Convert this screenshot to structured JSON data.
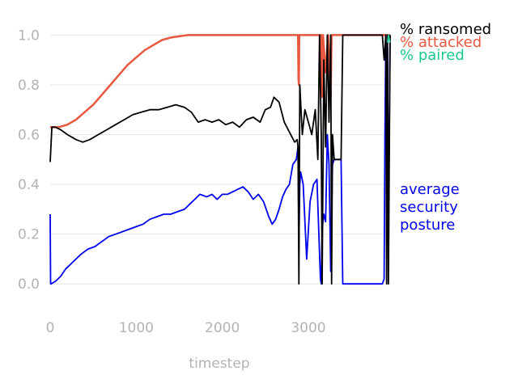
{
  "chart_data": {
    "type": "line",
    "xlabel": "timestep",
    "ylabel": "",
    "xlim": [
      0,
      3950
    ],
    "ylim": [
      -0.1,
      1.05
    ],
    "x_ticks": [
      "0",
      "1000",
      "2000",
      "3000"
    ],
    "y_ticks": [
      "0.0",
      "0.2",
      "0.4",
      "0.6",
      "0.8",
      "1.0"
    ],
    "grid": "horizontal",
    "legend_position": "top-right",
    "series": [
      {
        "name": "% ransomed",
        "color": "#000000",
        "x": [
          0,
          20,
          60,
          120,
          200,
          300,
          380,
          460,
          560,
          660,
          760,
          860,
          960,
          1060,
          1160,
          1260,
          1360,
          1460,
          1560,
          1640,
          1720,
          1800,
          1880,
          1960,
          2040,
          2120,
          2200,
          2280,
          2360,
          2440,
          2500,
          2560,
          2600,
          2660,
          2720,
          2780,
          2840,
          2870,
          2880,
          2890,
          2900,
          2930,
          2960,
          3000,
          3040,
          3080,
          3110,
          3130,
          3150,
          3160,
          3180,
          3200,
          3220,
          3240,
          3260,
          3270,
          3280,
          3300,
          3320,
          3340,
          3360,
          3380,
          3400,
          3420,
          3440,
          3560,
          3700,
          3860,
          3880,
          3900,
          3910,
          3920,
          3930,
          3950
        ],
        "y": [
          0.49,
          0.63,
          0.63,
          0.62,
          0.6,
          0.58,
          0.57,
          0.58,
          0.6,
          0.62,
          0.64,
          0.66,
          0.68,
          0.69,
          0.7,
          0.7,
          0.71,
          0.72,
          0.71,
          0.69,
          0.65,
          0.66,
          0.65,
          0.66,
          0.64,
          0.65,
          0.63,
          0.66,
          0.67,
          0.65,
          0.7,
          0.71,
          0.75,
          0.73,
          0.65,
          0.61,
          0.57,
          0.58,
          0.55,
          0.0,
          0.8,
          0.6,
          0.7,
          0.65,
          0.6,
          0.7,
          0.5,
          1.0,
          0.6,
          0.0,
          0.9,
          0.55,
          1.0,
          0.65,
          1.0,
          0.0,
          0.6,
          0.5,
          0.5,
          0.5,
          0.5,
          0.5,
          1.0,
          1.0,
          1.0,
          1.0,
          1.0,
          1.0,
          0.9,
          1.0,
          0.0,
          1.0,
          0.0,
          1.0
        ]
      },
      {
        "name": "% attacked",
        "color": "#e8573f",
        "x": [
          0,
          100,
          200,
          300,
          400,
          500,
          600,
          700,
          800,
          900,
          1000,
          1100,
          1200,
          1300,
          1400,
          1500,
          1600,
          1700,
          1800,
          1900,
          2200,
          2600,
          2880,
          2885,
          2890,
          2895,
          3150,
          3155,
          3165,
          3170,
          3200,
          3230,
          3260,
          3270,
          3280,
          3950
        ],
        "y": [
          0.63,
          0.63,
          0.64,
          0.66,
          0.69,
          0.72,
          0.76,
          0.8,
          0.84,
          0.88,
          0.91,
          0.94,
          0.96,
          0.98,
          0.99,
          0.995,
          1.0,
          1.0,
          1.0,
          1.0,
          1.0,
          1.0,
          1.0,
          0.82,
          0.8,
          1.0,
          1.0,
          0.75,
          0.76,
          1.0,
          0.85,
          1.0,
          0.75,
          1.0,
          1.0,
          1.0
        ]
      },
      {
        "name": "% paired",
        "color": "#1bc98e",
        "x": [
          3920,
          3930,
          3950
        ],
        "y": [
          0.97,
          1.0,
          0.97
        ]
      },
      {
        "name": "average security posture",
        "color": "#0000ee",
        "x": [
          0,
          5,
          10,
          60,
          120,
          180,
          240,
          300,
          360,
          440,
          520,
          600,
          680,
          760,
          840,
          920,
          1000,
          1080,
          1160,
          1240,
          1320,
          1400,
          1480,
          1560,
          1620,
          1680,
          1740,
          1820,
          1880,
          1940,
          2000,
          2060,
          2120,
          2180,
          2240,
          2300,
          2360,
          2420,
          2480,
          2540,
          2580,
          2620,
          2660,
          2700,
          2740,
          2780,
          2820,
          2860,
          2880,
          2890,
          2900,
          2910,
          2940,
          2980,
          3020,
          3060,
          3100,
          3140,
          3150,
          3160,
          3180,
          3200,
          3220,
          3240,
          3260,
          3280,
          3300,
          3340,
          3380,
          3400,
          3420,
          3440,
          3600,
          3700,
          3800,
          3860,
          3880,
          3890,
          3900,
          3910,
          3920,
          3930,
          3950
        ],
        "y": [
          0.28,
          0.0,
          0.0,
          0.01,
          0.03,
          0.06,
          0.08,
          0.1,
          0.12,
          0.14,
          0.15,
          0.17,
          0.19,
          0.2,
          0.21,
          0.22,
          0.23,
          0.24,
          0.26,
          0.27,
          0.28,
          0.28,
          0.29,
          0.3,
          0.32,
          0.34,
          0.36,
          0.35,
          0.36,
          0.34,
          0.36,
          0.36,
          0.37,
          0.38,
          0.39,
          0.37,
          0.34,
          0.36,
          0.33,
          0.27,
          0.24,
          0.26,
          0.3,
          0.35,
          0.38,
          0.4,
          0.48,
          0.5,
          0.55,
          0.17,
          0.4,
          0.45,
          0.4,
          0.1,
          0.33,
          0.4,
          0.42,
          0.02,
          0.0,
          0.22,
          0.28,
          0.25,
          0.6,
          0.48,
          0.05,
          0.48,
          0.5,
          0.5,
          0.5,
          0.0,
          0.0,
          0.0,
          0.0,
          0.0,
          0.0,
          0.0,
          0.02,
          0.6,
          1.0,
          0.8,
          0.95,
          0.2,
          1.0
        ]
      }
    ],
    "legend": [
      {
        "label": "% ransomed",
        "color": "#000000"
      },
      {
        "label": "% attacked",
        "color": "#e8573f"
      },
      {
        "label": "% paired",
        "color": "#1bc98e"
      }
    ],
    "annotations": [
      {
        "lines": [
          "average",
          "security",
          "posture"
        ],
        "color": "#0000ee"
      }
    ]
  }
}
